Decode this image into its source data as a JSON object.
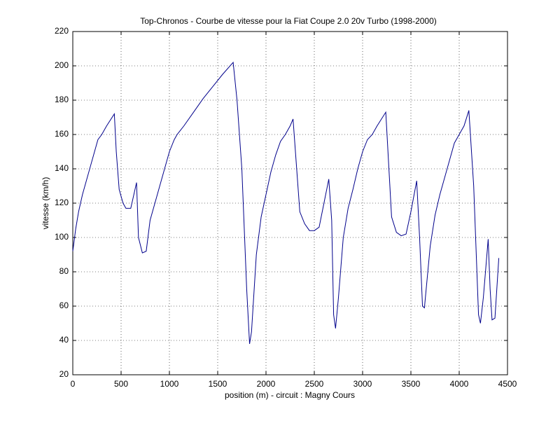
{
  "chart_data": {
    "type": "line",
    "title": "Top-Chronos - Courbe de vitesse pour la Fiat Coupe 2.0 20v Turbo (1998-2000)",
    "xlabel": "position (m) - circuit : Magny Cours",
    "ylabel": "vitesse (km/h)",
    "x": [
      0,
      30,
      60,
      100,
      150,
      200,
      260,
      300,
      350,
      430,
      450,
      480,
      520,
      550,
      600,
      640,
      660,
      680,
      720,
      760,
      800,
      850,
      900,
      950,
      1000,
      1050,
      1080,
      1150,
      1250,
      1350,
      1450,
      1550,
      1660,
      1700,
      1750,
      1800,
      1830,
      1850,
      1900,
      1950,
      2000,
      2050,
      2100,
      2150,
      2200,
      2250,
      2280,
      2350,
      2400,
      2450,
      2500,
      2550,
      2600,
      2650,
      2680,
      2700,
      2720,
      2750,
      2800,
      2850,
      2900,
      2950,
      3000,
      3050,
      3100,
      3150,
      3240,
      3300,
      3350,
      3400,
      3450,
      3500,
      3560,
      3590,
      3620,
      3640,
      3700,
      3750,
      3800,
      3850,
      3900,
      3950,
      4000,
      4050,
      4100,
      4150,
      4200,
      4220,
      4250,
      4300,
      4320,
      4340,
      4370,
      4410
    ],
    "values": [
      92,
      105,
      115,
      125,
      135,
      145,
      157,
      160,
      165,
      172,
      150,
      128,
      120,
      117,
      117,
      127,
      132,
      100,
      91,
      92,
      110,
      120,
      130,
      140,
      150,
      157,
      160,
      165,
      173,
      181,
      188,
      195,
      202,
      180,
      140,
      70,
      38,
      45,
      90,
      112,
      125,
      138,
      148,
      156,
      160,
      165,
      169,
      115,
      108,
      104,
      104,
      106,
      120,
      134,
      110,
      55,
      47,
      65,
      100,
      117,
      128,
      140,
      150,
      157,
      160,
      165,
      173,
      112,
      103,
      101,
      102,
      115,
      133,
      100,
      60,
      59,
      95,
      113,
      125,
      135,
      145,
      155,
      160,
      165,
      174,
      130,
      55,
      50,
      65,
      99,
      70,
      52,
      53,
      88
    ],
    "color": "#00008b",
    "xlim": [
      0,
      4500
    ],
    "xticks": [
      0,
      500,
      1000,
      1500,
      2000,
      2500,
      3000,
      3500,
      4000,
      4500
    ],
    "ylim": [
      20,
      220
    ],
    "yticks": [
      20,
      40,
      60,
      80,
      100,
      120,
      140,
      160,
      180,
      200,
      220
    ],
    "grid": true
  }
}
